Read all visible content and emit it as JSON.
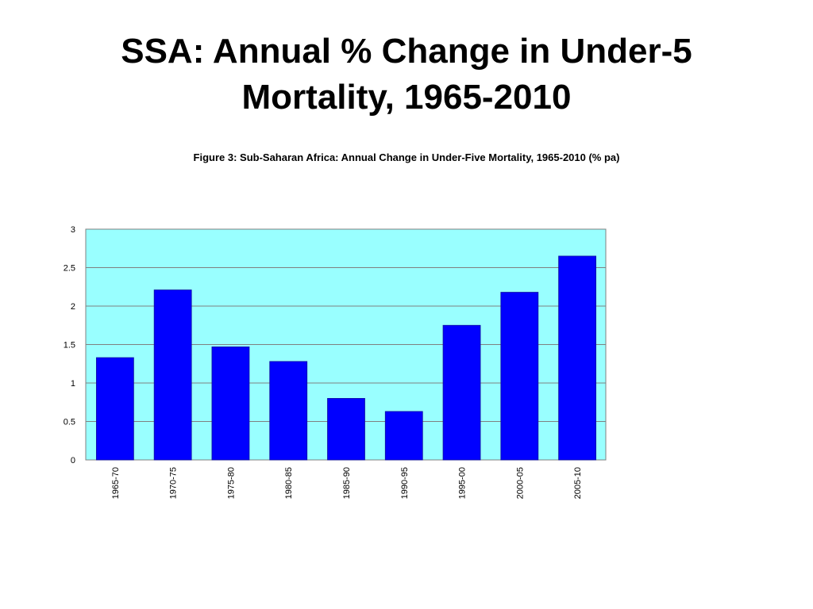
{
  "slide": {
    "title": "SSA: Annual % Change in Under-5 Mortality, 1965-2010"
  },
  "chart_data": {
    "type": "bar",
    "title": "Figure 3: Sub-Saharan Africa: Annual Change in Under-Five Mortality, 1965-2010 (% pa)",
    "xlabel": "",
    "ylabel": "",
    "categories": [
      "1965-70",
      "1970-75",
      "1975-80",
      "1980-85",
      "1985-90",
      "1990-95",
      "1995-00",
      "2000-05",
      "2005-10"
    ],
    "values": [
      1.33,
      2.21,
      1.47,
      1.28,
      0.8,
      0.63,
      1.75,
      2.18,
      2.65
    ],
    "ylim": [
      0,
      3
    ],
    "yticks": [
      "0",
      "0.5",
      "1",
      "1.5",
      "2",
      "2.5",
      "3"
    ],
    "grid": true,
    "legend": "none",
    "colors": {
      "bar": "#0000FF",
      "plot_background": "#99FFFF",
      "gridline": "#808080"
    }
  }
}
